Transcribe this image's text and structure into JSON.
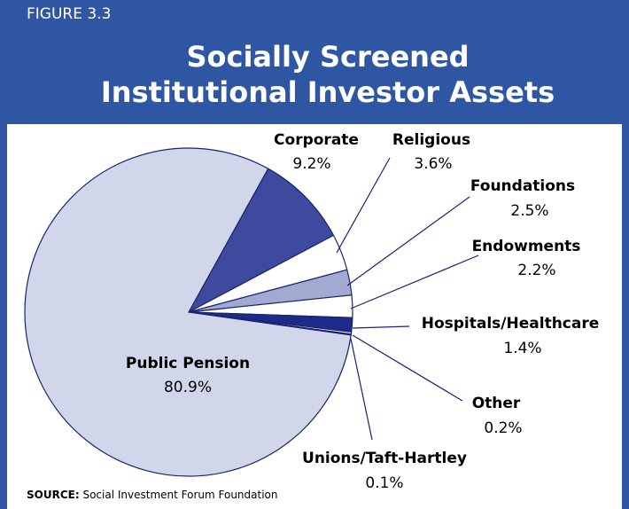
{
  "figure_label": "FIGURE 3.3",
  "source_label": "SOURCE:",
  "source": "Social Investment Forum Foundation",
  "chart_data": {
    "type": "pie",
    "title": "Socially Screened Institutional Investor Assets",
    "categories": [
      "Corporate",
      "Religious",
      "Foundations",
      "Endowments",
      "Hospitals/Healthcare",
      "Other",
      "Unions/Taft-Hartley",
      "Public Pension"
    ],
    "values": [
      9.2,
      3.6,
      2.5,
      2.2,
      1.4,
      0.2,
      0.1,
      80.9
    ],
    "value_labels": [
      "9.2%",
      "3.6%",
      "2.5%",
      "2.2%",
      "1.4%",
      "0.2%",
      "0.1%",
      "80.9%"
    ],
    "colors": [
      "#3d4a9e",
      "#ffffff",
      "#a3aad2",
      "#ffffff",
      "#1c2a8a",
      "#ffffff",
      "#3d4a9e",
      "#d1d6ea"
    ]
  }
}
